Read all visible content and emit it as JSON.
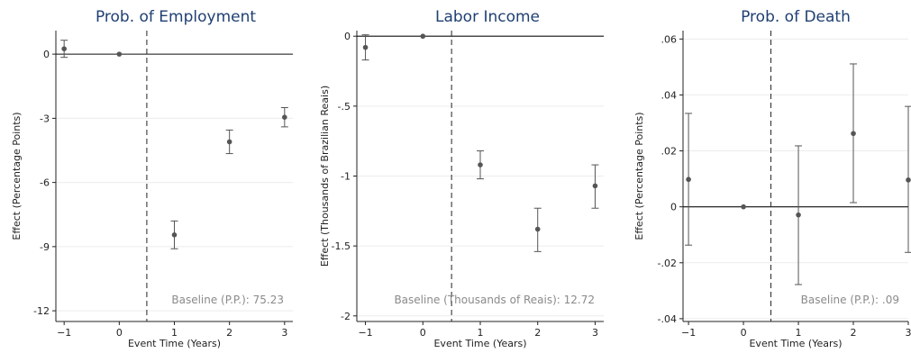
{
  "chart_data": [
    {
      "type": "scatter",
      "title": "Prob. of Employment",
      "xlabel": "Event Time (Years)",
      "ylabel": "Effect (Percentage Points)",
      "xlim": [
        -1.15,
        3.15
      ],
      "ylim": [
        -12.5,
        1.1
      ],
      "xticks": [
        -1,
        0,
        1,
        2,
        3
      ],
      "xtick_labels": [
        "−1",
        "0",
        "1",
        "2",
        "3"
      ],
      "yticks": [
        0,
        -3,
        -6,
        -9,
        -12
      ],
      "ytick_labels": [
        "0",
        "-3",
        "-6",
        "-9",
        "-12"
      ],
      "grid": true,
      "reference_line_y": 0,
      "event_line_x": 0.5,
      "baseline_note": "Baseline (P.P.): 75.23",
      "series": [
        {
          "points": [
            {
              "x": -1,
              "y": 0.25,
              "lo": -0.15,
              "hi": 0.65
            },
            {
              "x": 0,
              "y": 0.0
            },
            {
              "x": 1,
              "y": -8.45,
              "lo": -9.1,
              "hi": -7.8
            },
            {
              "x": 2,
              "y": -4.1,
              "lo": -4.65,
              "hi": -3.55
            },
            {
              "x": 3,
              "y": -2.95,
              "lo": -3.4,
              "hi": -2.5
            }
          ]
        }
      ]
    },
    {
      "type": "scatter",
      "title": "Labor Income",
      "xlabel": "Event Time (Years)",
      "ylabel": "Effect (Thousands of Brazilian Reais)",
      "xlim": [
        -1.15,
        3.15
      ],
      "ylim": [
        -2.04,
        0.04
      ],
      "xticks": [
        -1,
        0,
        1,
        2,
        3
      ],
      "xtick_labels": [
        "−1",
        "0",
        "1",
        "2",
        "3"
      ],
      "yticks": [
        0,
        -0.5,
        -1,
        -1.5,
        -2
      ],
      "ytick_labels": [
        "0",
        "-.5",
        "-1",
        "-1.5",
        "-2"
      ],
      "grid": true,
      "reference_line_y": 0,
      "event_line_x": 0.5,
      "baseline_note": "Baseline (Thousands of Reais): 12.72",
      "series": [
        {
          "points": [
            {
              "x": -1,
              "y": -0.08,
              "lo": -0.17,
              "hi": 0.01
            },
            {
              "x": 0,
              "y": 0.0
            },
            {
              "x": 1,
              "y": -0.92,
              "lo": -1.02,
              "hi": -0.82
            },
            {
              "x": 2,
              "y": -1.38,
              "lo": -1.54,
              "hi": -1.23
            },
            {
              "x": 3,
              "y": -1.07,
              "lo": -1.23,
              "hi": -0.92
            }
          ]
        }
      ]
    },
    {
      "type": "scatter",
      "title": "Prob. of Death",
      "xlabel": "Event Time (Years)",
      "ylabel": "Effect (Percentage Points)",
      "xlim": [
        -1.1,
        3.0
      ],
      "ylim": [
        -0.041,
        0.063
      ],
      "xticks": [
        -1,
        0,
        1,
        2,
        3
      ],
      "xtick_labels": [
        "−1",
        "0",
        "1",
        "2",
        "3"
      ],
      "yticks": [
        0.06,
        0.04,
        0.02,
        0,
        -0.02,
        -0.04
      ],
      "ytick_labels": [
        ".06",
        ".04",
        ".02",
        "0",
        "-.02",
        "-.04"
      ],
      "grid": true,
      "reference_line_y": 0,
      "event_line_x": 0.5,
      "baseline_note": "Baseline (P.P.): .09",
      "series": [
        {
          "points": [
            {
              "x": -1,
              "y": 0.0098,
              "lo": -0.0137,
              "hi": 0.0334
            },
            {
              "x": 0,
              "y": 0.0
            },
            {
              "x": 1,
              "y": -0.0029,
              "lo": -0.0278,
              "hi": 0.0218
            },
            {
              "x": 2,
              "y": 0.0262,
              "lo": 0.0015,
              "hi": 0.0511
            },
            {
              "x": 3,
              "y": 0.0096,
              "lo": -0.0163,
              "hi": 0.0359
            }
          ]
        }
      ]
    }
  ]
}
